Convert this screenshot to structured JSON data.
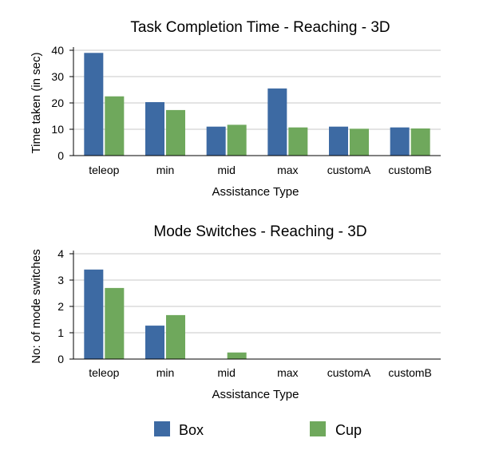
{
  "colors": {
    "box": "#3d6aa3",
    "cup": "#6fa85c",
    "grid": "#c9c9c9",
    "axis": "#000000"
  },
  "chart_data": [
    {
      "type": "bar",
      "title": "Task Completion Time - Reaching - 3D",
      "xlabel": "Assistance Type",
      "ylabel": "Time taken (in sec)",
      "categories": [
        "teleop",
        "min",
        "mid",
        "max",
        "customA",
        "customB"
      ],
      "ylim": [
        0,
        40
      ],
      "yticks": [
        0,
        10,
        20,
        30,
        40
      ],
      "grid": true,
      "series": [
        {
          "name": "Box",
          "color": "#3d6aa3",
          "values": [
            39,
            20.3,
            11,
            25.5,
            11,
            10.7
          ]
        },
        {
          "name": "Cup",
          "color": "#6fa85c",
          "values": [
            22.5,
            17.3,
            11.7,
            10.7,
            10.2,
            10.3
          ]
        }
      ]
    },
    {
      "type": "bar",
      "title": "Mode Switches - Reaching - 3D",
      "xlabel": "Assistance Type",
      "ylabel": "No: of mode switches",
      "categories": [
        "teleop",
        "min",
        "mid",
        "max",
        "customA",
        "customB"
      ],
      "ylim": [
        0,
        4
      ],
      "yticks": [
        0,
        1,
        2,
        3,
        4
      ],
      "grid": true,
      "series": [
        {
          "name": "Box",
          "color": "#3d6aa3",
          "values": [
            3.4,
            1.27,
            0,
            0,
            0,
            0
          ]
        },
        {
          "name": "Cup",
          "color": "#6fa85c",
          "values": [
            2.7,
            1.67,
            0.25,
            0,
            0,
            0
          ]
        }
      ]
    }
  ],
  "legend": {
    "placement": "bottom-center",
    "items": [
      {
        "label": "Box",
        "color": "#3d6aa3"
      },
      {
        "label": "Cup",
        "color": "#6fa85c"
      }
    ]
  }
}
